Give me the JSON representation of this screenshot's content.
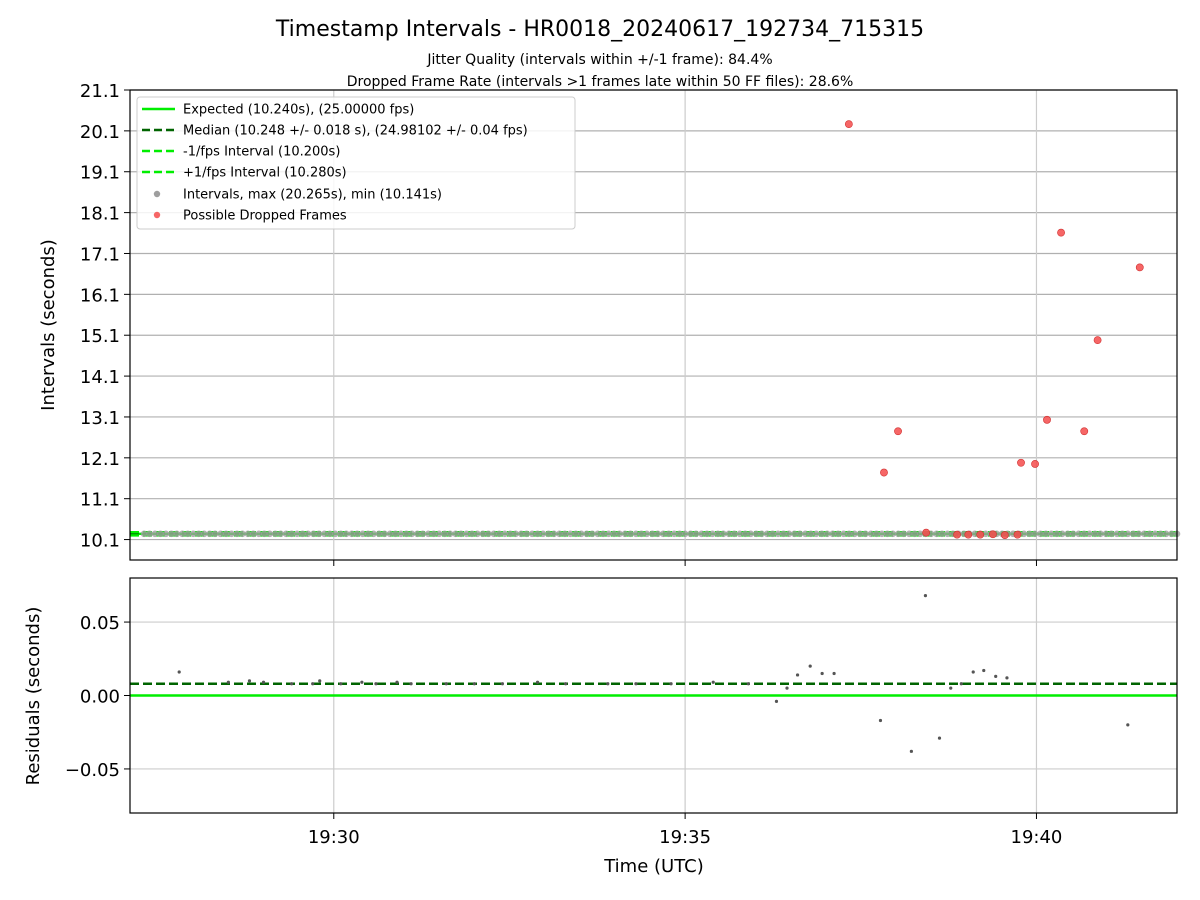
{
  "chart_data": [
    {
      "type": "scatter",
      "title": "Timestamp Intervals - HR0018_20240617_192734_715315",
      "subtitle_lines": [
        "Jitter Quality (intervals within +/-1 frame): 84.4%",
        "Dropped Frame Rate (intervals >1 frames late within 50 FF files): 28.6%"
      ],
      "xlabel": "",
      "ylabel": "Intervals (seconds)",
      "x_unit": "minutes past 19:00 UTC",
      "xlim": [
        27.1,
        42.0
      ],
      "ylim": [
        9.6,
        21.1
      ],
      "yticks": [
        10.1,
        11.1,
        12.1,
        13.1,
        14.1,
        15.1,
        16.1,
        17.1,
        18.1,
        19.1,
        20.1,
        21.1
      ],
      "xticks": [
        30,
        35,
        40
      ],
      "grid": true,
      "legend_position": "upper-left",
      "legend": [
        "Expected (10.240s), (25.00000 fps)",
        "Median (10.248 +/- 0.018 s), (24.98102 +/- 0.04 fps)",
        "-1/fps Interval (10.200s)",
        "+1/fps Interval (10.280s)",
        "Intervals, max (20.265s), min (10.141s)",
        "Possible Dropped Frames"
      ],
      "reference_lines": [
        {
          "name": "Expected",
          "y": 10.24,
          "color": "#00ee00",
          "style": "solid"
        },
        {
          "name": "Median",
          "y": 10.248,
          "color": "#006400",
          "style": "dashed"
        },
        {
          "name": "-1/fps Interval",
          "y": 10.2,
          "color": "#00ee00",
          "style": "dashed"
        },
        {
          "name": "+1/fps Interval",
          "y": 10.28,
          "color": "#00ee00",
          "style": "dashed"
        }
      ],
      "series": [
        {
          "name": "Intervals",
          "color": "#9e9e9e",
          "x_start": 27.3,
          "x_end": 42.0,
          "count": 190,
          "y_approx": 10.24
        },
        {
          "name": "Possible Dropped Frames",
          "color": "#f44b4b",
          "points": [
            [
              37.33,
              20.265
            ],
            [
              37.83,
              11.74
            ],
            [
              38.03,
              12.75
            ],
            [
              38.43,
              10.27
            ],
            [
              38.87,
              10.22
            ],
            [
              39.03,
              10.22
            ],
            [
              39.2,
              10.22
            ],
            [
              39.38,
              10.23
            ],
            [
              39.55,
              10.21
            ],
            [
              39.73,
              10.22
            ],
            [
              39.78,
              11.98
            ],
            [
              39.98,
              11.95
            ],
            [
              40.15,
              13.03
            ],
            [
              40.35,
              17.61
            ],
            [
              40.68,
              12.75
            ],
            [
              40.87,
              14.98
            ],
            [
              41.47,
              16.76
            ]
          ]
        }
      ]
    },
    {
      "type": "scatter",
      "title": "",
      "xlabel": "Time (UTC)",
      "ylabel": "Residuals (seconds)",
      "xlim": [
        27.1,
        42.0
      ],
      "ylim": [
        -0.08,
        0.08
      ],
      "yticks": [
        0.05,
        0.0,
        -0.05
      ],
      "ytick_labels": [
        "0.05",
        "0.00",
        "−0.05"
      ],
      "xticks": [
        30,
        35,
        40
      ],
      "xtick_labels": [
        "19:30",
        "19:35",
        "19:40"
      ],
      "grid": true,
      "reference_lines": [
        {
          "name": "Expected",
          "y": 0.0,
          "color": "#00ee00",
          "style": "solid"
        },
        {
          "name": "Median",
          "y": 0.008,
          "color": "#006400",
          "style": "dashed"
        }
      ],
      "series": [
        {
          "name": "Residuals",
          "color": "#555555",
          "points": [
            [
              27.8,
              0.016
            ],
            [
              28.5,
              0.009
            ],
            [
              28.8,
              0.01
            ],
            [
              29.0,
              0.009
            ],
            [
              29.4,
              0.008
            ],
            [
              29.7,
              0.008
            ],
            [
              29.8,
              0.01
            ],
            [
              30.1,
              0.008
            ],
            [
              30.4,
              0.009
            ],
            [
              30.6,
              0.008
            ],
            [
              30.9,
              0.009
            ],
            [
              31.1,
              0.008
            ],
            [
              31.6,
              0.008
            ],
            [
              32.0,
              0.008
            ],
            [
              32.4,
              0.008
            ],
            [
              32.9,
              0.009
            ],
            [
              33.3,
              0.008
            ],
            [
              33.9,
              0.008
            ],
            [
              34.3,
              0.008
            ],
            [
              34.8,
              0.008
            ],
            [
              35.4,
              0.009
            ],
            [
              35.9,
              0.008
            ],
            [
              36.3,
              -0.004
            ],
            [
              36.45,
              0.005
            ],
            [
              36.6,
              0.014
            ],
            [
              36.78,
              0.02
            ],
            [
              36.95,
              0.015
            ],
            [
              37.12,
              0.015
            ],
            [
              37.78,
              -0.017
            ],
            [
              38.22,
              -0.038
            ],
            [
              38.42,
              0.068
            ],
            [
              38.62,
              -0.029
            ],
            [
              38.78,
              0.005
            ],
            [
              38.93,
              0.008
            ],
            [
              39.1,
              0.016
            ],
            [
              39.25,
              0.017
            ],
            [
              39.42,
              0.013
            ],
            [
              39.58,
              0.012
            ],
            [
              41.3,
              -0.02
            ]
          ]
        }
      ]
    }
  ]
}
